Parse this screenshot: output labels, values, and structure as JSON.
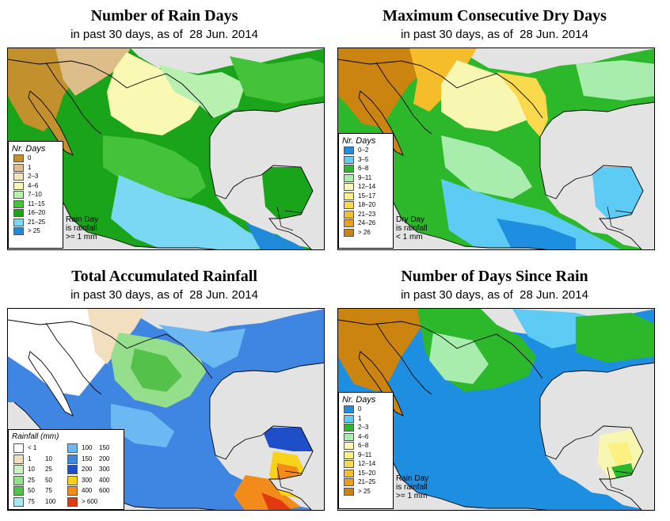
{
  "panels": [
    {
      "title": "Number of Rain Days",
      "subtitle_prefix": "in past 30 days, as of",
      "date": "28 Jun. 2014",
      "legend_title": "Nr. Days",
      "legend": [
        {
          "label": "0",
          "color": "#c2912e"
        },
        {
          "label": "1",
          "color": "#ddbe8a"
        },
        {
          "label": "2–3",
          "color": "#f5e7b9"
        },
        {
          "label": "4–6",
          "color": "#f9f9b4"
        },
        {
          "label": "7–10",
          "color": "#b8f0b0"
        },
        {
          "label": "11–15",
          "color": "#44c23a"
        },
        {
          "label": "16–20",
          "color": "#1aa41a"
        },
        {
          "label": "21–25",
          "color": "#7ad8f4"
        },
        {
          "label": "> 25",
          "color": "#1f8ad8"
        }
      ],
      "note": [
        "Rain Day",
        "is rainfall",
        ">= 1 mm"
      ]
    },
    {
      "title": "Maximum Consecutive Dry Days",
      "subtitle_prefix": "in past 30 days, as of",
      "date": "28 Jun. 2014",
      "legend_title": "Nr. Days",
      "legend": [
        {
          "label": "0–2",
          "color": "#1e8fe0"
        },
        {
          "label": "3–5",
          "color": "#5ecbf4"
        },
        {
          "label": "6–8",
          "color": "#2cb82a"
        },
        {
          "label": "9–11",
          "color": "#a8ecae"
        },
        {
          "label": "12–14",
          "color": "#f7f7b2"
        },
        {
          "label": "15–17",
          "color": "#fbf080"
        },
        {
          "label": "18–20",
          "color": "#fada4c"
        },
        {
          "label": "21–23",
          "color": "#f6bd2a"
        },
        {
          "label": "24–26",
          "color": "#eba01c"
        },
        {
          "label": "> 26",
          "color": "#cc8410"
        }
      ],
      "note": [
        "Dry Day",
        "is rainfall",
        "< 1 mm"
      ]
    },
    {
      "title": "Total Accumulated Rainfall",
      "subtitle_prefix": "in past 30 days, as of",
      "date": "28 Jun. 2014",
      "legend_title": "Rainfall (mm)",
      "legend": [
        {
          "lo": "< 1",
          "hi": "",
          "color": "#ffffff"
        },
        {
          "lo": "1",
          "hi": "10",
          "color": "#f1dfc0"
        },
        {
          "lo": "10",
          "hi": "25",
          "color": "#cbeec4"
        },
        {
          "lo": "25",
          "hi": "50",
          "color": "#95de8c"
        },
        {
          "lo": "50",
          "hi": "75",
          "color": "#54c24a"
        },
        {
          "lo": "75",
          "hi": "100",
          "color": "#a6e8f2"
        },
        {
          "lo": "100",
          "hi": "150",
          "color": "#6cb8f2"
        },
        {
          "lo": "150",
          "hi": "200",
          "color": "#3e86e2"
        },
        {
          "lo": "200",
          "hi": "300",
          "color": "#1f4fc8"
        },
        {
          "lo": "300",
          "hi": "400",
          "color": "#f6d21a"
        },
        {
          "lo": "400",
          "hi": "600",
          "color": "#f28b1a"
        },
        {
          "lo": "> 600",
          "hi": "",
          "color": "#e23a10"
        }
      ]
    },
    {
      "title": "Number of Days Since Rain",
      "subtitle_prefix": "in past 30 days, as of",
      "date": "28 Jun. 2014",
      "legend_title": "Nr. Days",
      "legend": [
        {
          "label": "0",
          "color": "#1e8fe0"
        },
        {
          "label": "1",
          "color": "#5ecbf4"
        },
        {
          "label": "2–3",
          "color": "#2cb82a"
        },
        {
          "label": "4–6",
          "color": "#a8ecae"
        },
        {
          "label": "6–8",
          "color": "#f7f7b2"
        },
        {
          "label": "9–11",
          "color": "#fbf080"
        },
        {
          "label": "12–14",
          "color": "#fada4c"
        },
        {
          "label": "15–20",
          "color": "#f6bd2a"
        },
        {
          "label": "21–25",
          "color": "#eba01c"
        },
        {
          "label": "> 25",
          "color": "#cc8410"
        }
      ],
      "note": [
        "Rain Day",
        "is rainfall",
        ">= 1 mm"
      ]
    }
  ]
}
